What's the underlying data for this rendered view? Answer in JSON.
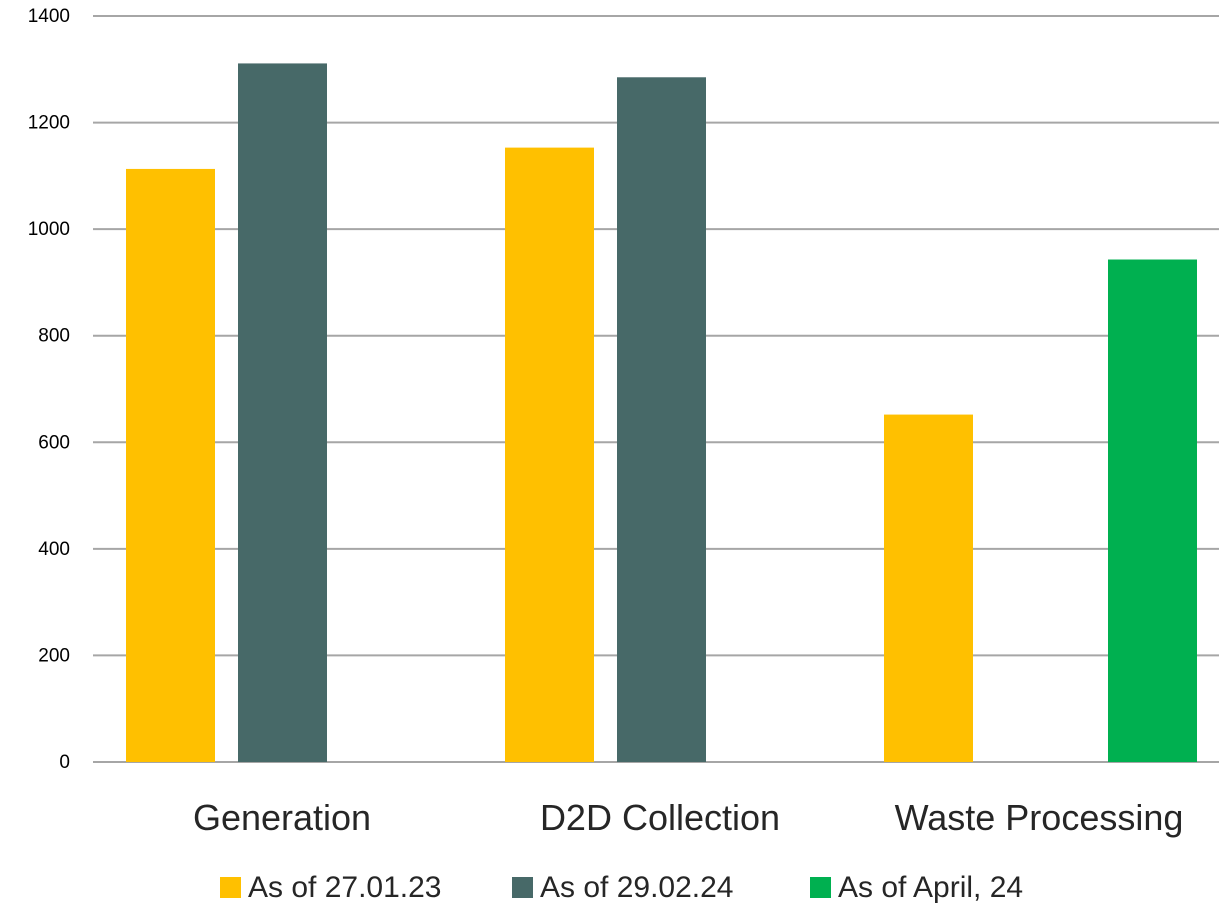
{
  "chart_data": {
    "type": "bar",
    "categories": [
      "Generation",
      "D2D Collection",
      "Waste Processing"
    ],
    "series": [
      {
        "name": "As of 27.01.23",
        "color": "#FFC000",
        "values": [
          1113,
          1153,
          652
        ]
      },
      {
        "name": "As of 29.02.24",
        "color": "#476968",
        "values": [
          1311,
          1285,
          null
        ]
      },
      {
        "name": "As of April, 24",
        "color": "#00B050",
        "values": [
          null,
          null,
          943
        ]
      }
    ],
    "ylim": [
      0,
      1400
    ],
    "yticks": [
      0,
      200,
      400,
      600,
      800,
      1000,
      1200,
      1400
    ],
    "grid": true,
    "gridline_color": "#A6A6A6",
    "legend_position": "bottom"
  }
}
